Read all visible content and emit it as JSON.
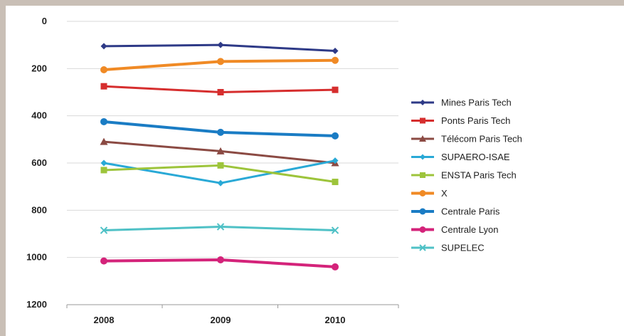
{
  "chart_data": {
    "type": "line",
    "title": "",
    "xlabel": "",
    "ylabel": "",
    "x": [
      "2008",
      "2009",
      "2010"
    ],
    "ylim": [
      0,
      1200
    ],
    "y_reversed": true,
    "y_ticks": [
      0,
      200,
      400,
      600,
      800,
      1000,
      1200
    ],
    "grid": "horizontal",
    "legend_position": "right",
    "series": [
      {
        "name": "Mines Paris Tech",
        "values": [
          105,
          100,
          125
        ],
        "color": "#2e3a87",
        "marker": "diamond"
      },
      {
        "name": "Ponts Paris Tech",
        "values": [
          275,
          300,
          290
        ],
        "color": "#d62e2e",
        "marker": "square"
      },
      {
        "name": "Télécom Paris Tech",
        "values": [
          510,
          550,
          600
        ],
        "color": "#8b4a43",
        "marker": "triangle"
      },
      {
        "name": "SUPAERO-ISAE",
        "values": [
          600,
          685,
          590
        ],
        "color": "#29a9d6",
        "marker": "diamond"
      },
      {
        "name": "ENSTA Paris Tech",
        "values": [
          630,
          610,
          680
        ],
        "color": "#9dc43b",
        "marker": "square"
      },
      {
        "name": "X",
        "values": [
          205,
          170,
          165
        ],
        "color": "#f08a25",
        "marker": "circle"
      },
      {
        "name": "Centrale Paris",
        "values": [
          425,
          470,
          485
        ],
        "color": "#1a7cc4",
        "marker": "circle"
      },
      {
        "name": "Centrale Lyon",
        "values": [
          1015,
          1010,
          1040
        ],
        "color": "#d4237a",
        "marker": "circle"
      },
      {
        "name": "SUPELEC",
        "values": [
          885,
          870,
          885
        ],
        "color": "#4fc1c6",
        "marker": "cross"
      }
    ]
  }
}
